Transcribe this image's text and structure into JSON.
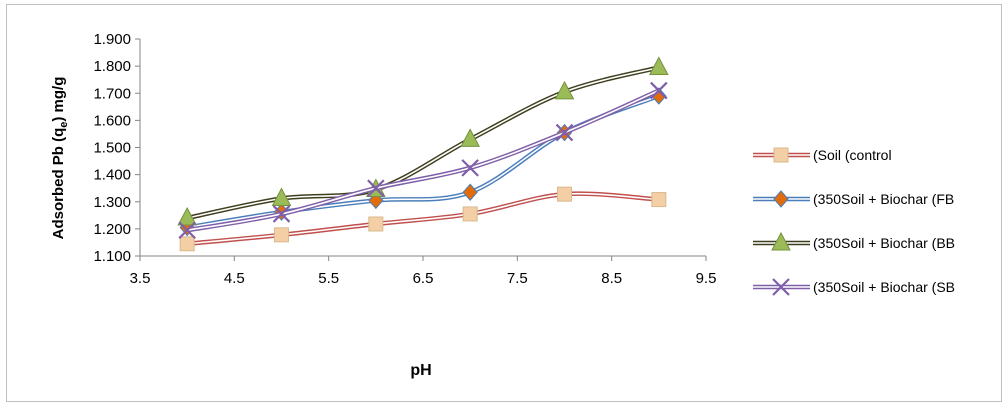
{
  "chart_data": {
    "type": "line",
    "title": "",
    "xlabel": "pH",
    "ylabel": "Adsorbed Pb (q",
    "ylabel_sub": "e",
    "ylabel_tail": ") mg/g",
    "xlim": [
      3.5,
      9.5
    ],
    "ylim": [
      1.1,
      1.9
    ],
    "x_ticks": [
      "3.5",
      "4.5",
      "5.5",
      "6.5",
      "7.5",
      "8.5",
      "9.5"
    ],
    "y_ticks": [
      "1.100",
      "1.200",
      "1.300",
      "1.400",
      "1.500",
      "1.600",
      "1.700",
      "1.800",
      "1.900"
    ],
    "grid": false,
    "legend_position": "right",
    "x": [
      4,
      5,
      6,
      7,
      8,
      9
    ],
    "series": [
      {
        "name": "(Soil (control",
        "values": [
          1.145,
          1.178,
          1.218,
          1.255,
          1.328,
          1.308
        ],
        "color": "#c0504d",
        "marker": "square",
        "marker_color": "#f4cfa6"
      },
      {
        "name": "(350Soil + Biochar (FB",
        "values": [
          1.205,
          1.262,
          1.305,
          1.335,
          1.555,
          1.69
        ],
        "color": "#4a7ebb",
        "marker": "diamond",
        "marker_color": "#e36c0a"
      },
      {
        "name": "(350Soil + Biochar (BB",
        "values": [
          1.24,
          1.312,
          1.345,
          1.53,
          1.705,
          1.795
        ],
        "color": "#3f3f1e",
        "marker": "triangle",
        "marker_color": "#9bbb59"
      },
      {
        "name": "(350Soil + Biochar (SB",
        "values": [
          1.195,
          1.255,
          1.35,
          1.425,
          1.555,
          1.71
        ],
        "color": "#7f5fa8",
        "marker": "x",
        "marker_color": "#7f5fa8"
      }
    ]
  }
}
